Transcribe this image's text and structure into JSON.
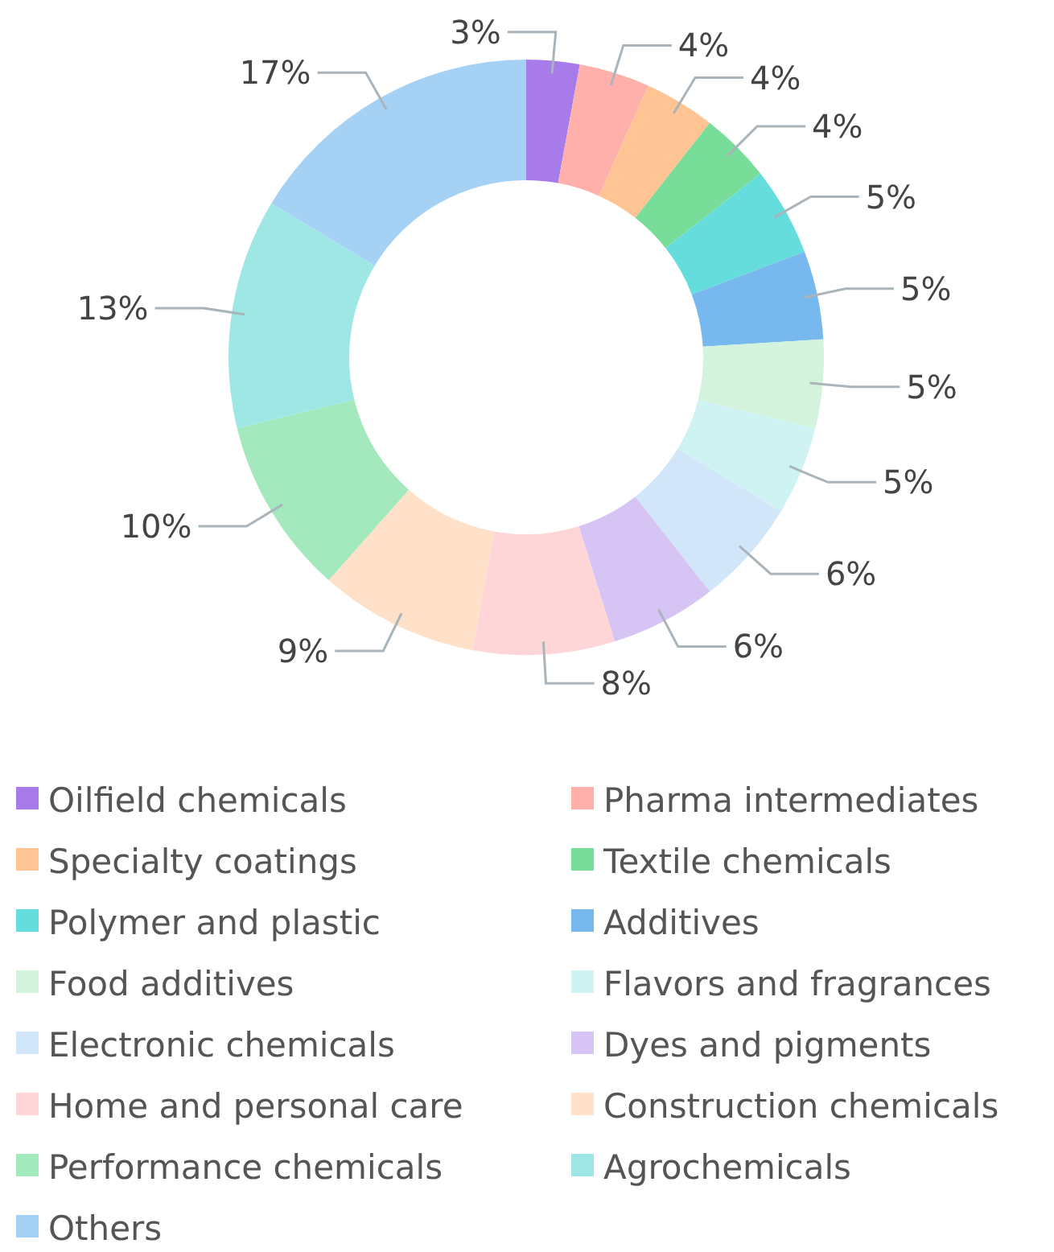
{
  "chart_data": {
    "type": "donut",
    "categories": [
      "Oilfield chemicals",
      "Pharma intermediates",
      "Specialty coatings",
      "Textile chemicals",
      "Polymer and plastic",
      "Additives",
      "Food additives",
      "Flavors and fragrances",
      "Electronic chemicals",
      "Dyes and pigments",
      "Home and personal care",
      "Construction chemicals",
      "Performance chemicals",
      "Agrochemicals",
      "Others"
    ],
    "values": [
      3,
      4,
      4,
      4,
      5,
      5,
      5,
      5,
      6,
      6,
      8,
      9,
      10,
      13,
      17
    ],
    "colors": [
      "#a77bea",
      "#ffb0aa",
      "#ffc494",
      "#77dd99",
      "#66dddd",
      "#77b8ee",
      "#d3f3dc",
      "#cff3f3",
      "#d2e6fa",
      "#d6c4f4",
      "#ffd6d8",
      "#ffe1c9",
      "#a3e9bd",
      "#9fe7e5",
      "#a5d1f5"
    ],
    "value_labels": [
      "3%",
      "4%",
      "4%",
      "4%",
      "5%",
      "5%",
      "5%",
      "5%",
      "6%",
      "6%",
      "8%",
      "9%",
      "10%",
      "13%",
      "17%"
    ],
    "legend": "bottom"
  }
}
